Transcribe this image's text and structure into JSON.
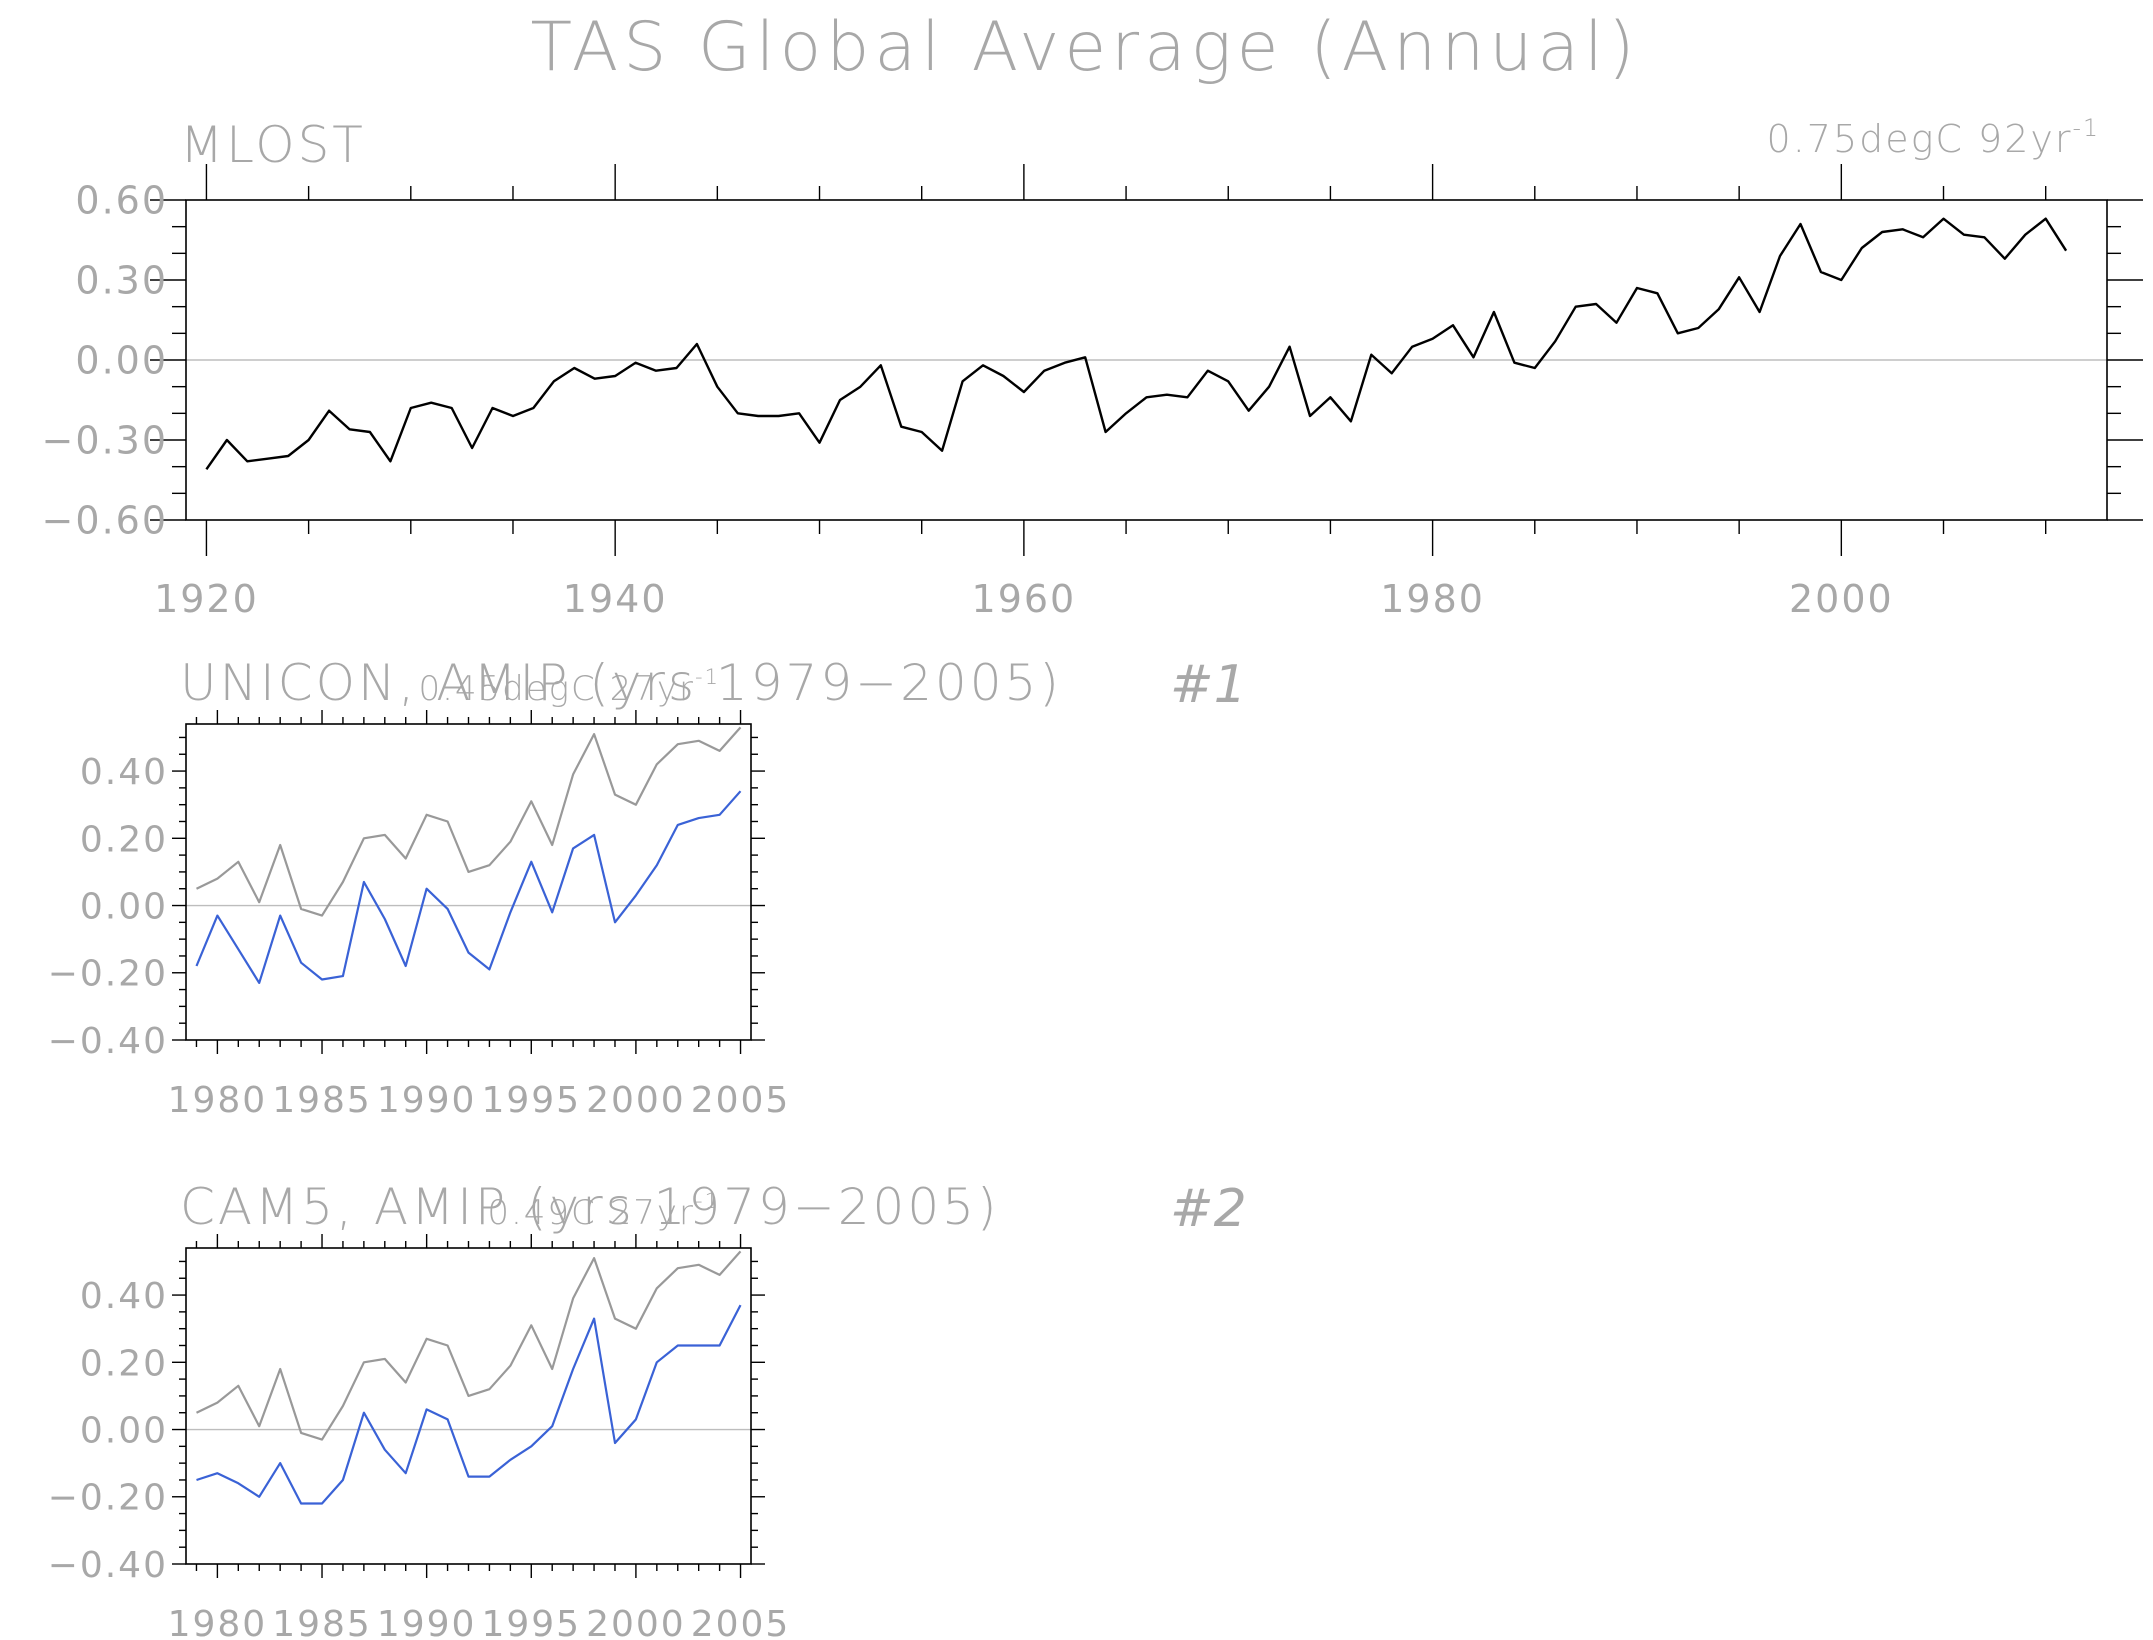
{
  "figure": {
    "title": "TAS Global Average (Annual)"
  },
  "chart_data": [
    {
      "type": "line",
      "panel_label": "MLOST",
      "trend_label": "0.75degC 92yr",
      "trend_label_sup": "-1",
      "x_ticks": [
        1920,
        1940,
        1960,
        1980,
        2000
      ],
      "y_ticks": [
        "0.60",
        "0.30",
        "0.00",
        "−0.30",
        "−0.60"
      ],
      "xlim": [
        1919,
        2013
      ],
      "ylim": [
        -0.6,
        0.6
      ],
      "series": [
        {
          "color": "#000000",
          "x": [
            1920,
            1921,
            1922,
            1923,
            1924,
            1925,
            1926,
            1927,
            1928,
            1929,
            1930,
            1931,
            1932,
            1933,
            1934,
            1935,
            1936,
            1937,
            1938,
            1939,
            1940,
            1941,
            1942,
            1943,
            1944,
            1945,
            1946,
            1947,
            1948,
            1949,
            1950,
            1951,
            1952,
            1953,
            1954,
            1955,
            1956,
            1957,
            1958,
            1959,
            1960,
            1961,
            1962,
            1963,
            1964,
            1965,
            1966,
            1967,
            1968,
            1969,
            1970,
            1971,
            1972,
            1973,
            1974,
            1975,
            1976,
            1977,
            1978,
            1979,
            1980,
            1981,
            1982,
            1983,
            1984,
            1985,
            1986,
            1987,
            1988,
            1989,
            1990,
            1991,
            1992,
            1993,
            1994,
            1995,
            1996,
            1997,
            1998,
            1999,
            2000,
            2001,
            2002,
            2003,
            2004,
            2005,
            2006,
            2007,
            2008,
            2009,
            2010,
            2011
          ],
          "values": [
            -0.41,
            -0.3,
            -0.38,
            -0.37,
            -0.36,
            -0.3,
            -0.19,
            -0.26,
            -0.27,
            -0.38,
            -0.18,
            -0.16,
            -0.18,
            -0.33,
            -0.18,
            -0.21,
            -0.18,
            -0.08,
            -0.03,
            -0.07,
            -0.06,
            -0.01,
            -0.04,
            -0.03,
            0.06,
            -0.1,
            -0.2,
            -0.21,
            -0.21,
            -0.2,
            -0.31,
            -0.15,
            -0.1,
            -0.02,
            -0.25,
            -0.27,
            -0.34,
            -0.08,
            -0.02,
            -0.06,
            -0.12,
            -0.04,
            -0.01,
            0.01,
            -0.27,
            -0.2,
            -0.14,
            -0.13,
            -0.14,
            -0.04,
            -0.08,
            -0.19,
            -0.1,
            0.05,
            -0.21,
            -0.14,
            -0.23,
            0.02,
            -0.05,
            0.05,
            0.08,
            0.13,
            0.01,
            0.18,
            -0.01,
            -0.03,
            0.07,
            0.2,
            0.21,
            0.14,
            0.27,
            0.25,
            0.1,
            0.12,
            0.19,
            0.31,
            0.18,
            0.39,
            0.51,
            0.33,
            0.3,
            0.42,
            0.48,
            0.49,
            0.46,
            0.53,
            0.47,
            0.46,
            0.38,
            0.47,
            0.53,
            0.41
          ]
        }
      ]
    },
    {
      "type": "line",
      "panel_label": "UNICON, AMIP (yrs 1979−2005)",
      "trend_label": "0.45degC 27yr",
      "trend_label_sup": "-1",
      "panel_number": "#1",
      "x_ticks": [
        "1980",
        "1985",
        "1990",
        "1995",
        "2000",
        "2005"
      ],
      "y_ticks": [
        "0.40",
        "0.20",
        "0.00",
        "−0.20",
        "−0.40"
      ],
      "xlim": [
        1978.5,
        2005.5
      ],
      "ylim": [
        -0.4,
        0.54
      ],
      "series": [
        {
          "color": "#999999",
          "x": [
            1979,
            1980,
            1981,
            1982,
            1983,
            1984,
            1985,
            1986,
            1987,
            1988,
            1989,
            1990,
            1991,
            1992,
            1993,
            1994,
            1995,
            1996,
            1997,
            1998,
            1999,
            2000,
            2001,
            2002,
            2003,
            2004,
            2005
          ],
          "values": [
            0.05,
            0.08,
            0.13,
            0.01,
            0.18,
            -0.01,
            -0.03,
            0.07,
            0.2,
            0.21,
            0.14,
            0.27,
            0.25,
            0.1,
            0.12,
            0.19,
            0.31,
            0.18,
            0.39,
            0.51,
            0.33,
            0.3,
            0.42,
            0.48,
            0.49,
            0.46,
            0.53
          ]
        },
        {
          "color": "#3a62d6",
          "x": [
            1979,
            1980,
            1981,
            1982,
            1983,
            1984,
            1985,
            1986,
            1987,
            1988,
            1989,
            1990,
            1991,
            1992,
            1993,
            1994,
            1995,
            1996,
            1997,
            1998,
            1999,
            2000,
            2001,
            2002,
            2003,
            2004,
            2005
          ],
          "values": [
            -0.18,
            -0.03,
            -0.13,
            -0.23,
            -0.03,
            -0.17,
            -0.22,
            -0.21,
            0.07,
            -0.04,
            -0.18,
            0.05,
            -0.01,
            -0.14,
            -0.19,
            -0.02,
            0.13,
            -0.02,
            0.17,
            0.21,
            -0.05,
            0.03,
            0.12,
            0.24,
            0.26,
            0.27,
            0.34
          ]
        }
      ]
    },
    {
      "type": "line",
      "panel_label": "CAM5, AMIP (yrs 1979−2005)",
      "trend_label": "0.49C 27yr",
      "trend_label_sup": "-1",
      "panel_number": "#2",
      "x_ticks": [
        "1980",
        "1985",
        "1990",
        "1995",
        "2000",
        "2005"
      ],
      "y_ticks": [
        "0.40",
        "0.20",
        "0.00",
        "−0.20",
        "−0.40"
      ],
      "xlim": [
        1978.5,
        2005.5
      ],
      "ylim": [
        -0.4,
        0.54
      ],
      "series": [
        {
          "color": "#999999",
          "x": [
            1979,
            1980,
            1981,
            1982,
            1983,
            1984,
            1985,
            1986,
            1987,
            1988,
            1989,
            1990,
            1991,
            1992,
            1993,
            1994,
            1995,
            1996,
            1997,
            1998,
            1999,
            2000,
            2001,
            2002,
            2003,
            2004,
            2005
          ],
          "values": [
            0.05,
            0.08,
            0.13,
            0.01,
            0.18,
            -0.01,
            -0.03,
            0.07,
            0.2,
            0.21,
            0.14,
            0.27,
            0.25,
            0.1,
            0.12,
            0.19,
            0.31,
            0.18,
            0.39,
            0.51,
            0.33,
            0.3,
            0.42,
            0.48,
            0.49,
            0.46,
            0.53
          ]
        },
        {
          "color": "#3a62d6",
          "x": [
            1979,
            1980,
            1981,
            1982,
            1983,
            1984,
            1985,
            1986,
            1987,
            1988,
            1989,
            1990,
            1991,
            1992,
            1993,
            1994,
            1995,
            1996,
            1997,
            1998,
            1999,
            2000,
            2001,
            2002,
            2003,
            2004,
            2005
          ],
          "values": [
            -0.15,
            -0.13,
            -0.16,
            -0.2,
            -0.1,
            -0.22,
            -0.22,
            -0.15,
            0.05,
            -0.06,
            -0.13,
            0.06,
            0.03,
            -0.14,
            -0.14,
            -0.09,
            -0.05,
            0.01,
            0.18,
            0.33,
            -0.04,
            0.03,
            0.2,
            0.25,
            0.25,
            0.25,
            0.37
          ]
        }
      ]
    }
  ]
}
